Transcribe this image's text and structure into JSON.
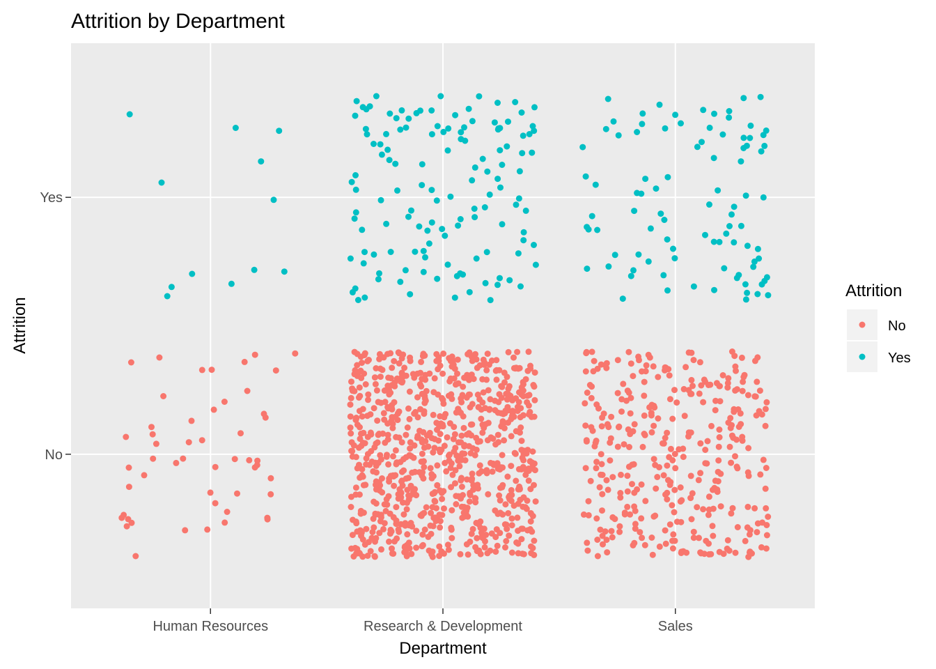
{
  "chart_data": {
    "type": "scatter",
    "title": "Attrition by Department",
    "xlabel": "Department",
    "ylabel": "Attrition",
    "x_categories": [
      "Human Resources",
      "Research & Development",
      "Sales"
    ],
    "y_categories": [
      "No",
      "Yes"
    ],
    "jitter": {
      "width": 0.4,
      "height": 0.4
    },
    "grid": true,
    "legend": {
      "title": "Attrition",
      "position": "right",
      "entries": [
        "No",
        "Yes"
      ]
    },
    "colors": {
      "No": "#F8766D",
      "Yes": "#00BFC4",
      "panel": "#EBEBEB",
      "grid": "#FFFFFF"
    },
    "groups": [
      {
        "department": "Human Resources",
        "attrition": "No",
        "count": 51
      },
      {
        "department": "Human Resources",
        "attrition": "Yes",
        "count": 12
      },
      {
        "department": "Research & Development",
        "attrition": "No",
        "count": 828
      },
      {
        "department": "Research & Development",
        "attrition": "Yes",
        "count": 133
      },
      {
        "department": "Sales",
        "attrition": "No",
        "count": 354
      },
      {
        "department": "Sales",
        "attrition": "Yes",
        "count": 92
      }
    ]
  }
}
